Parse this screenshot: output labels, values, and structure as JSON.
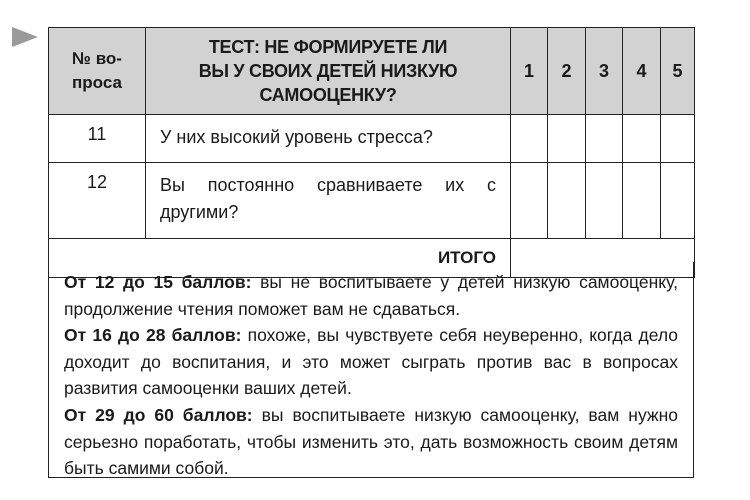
{
  "table": {
    "header": {
      "number_col": "№ во-\nпроса",
      "title": "ТЕСТ: НЕ ФОРМИРУЕТЕ ЛИ ВЫ У СВОИХ ДЕТЕЙ НИЗКУЮ САМООЦЕНКУ?",
      "scores": [
        "1",
        "2",
        "3",
        "4",
        "5"
      ]
    },
    "rows": [
      {
        "number": "11",
        "question": "У них высокий уровень стресса?"
      },
      {
        "number": "12",
        "question": "Вы постоянно сравниваете их с другими?"
      }
    ],
    "total_label": "ИТОГО"
  },
  "results": [
    {
      "range": "От 12 до 15 баллов:",
      "text": " вы не воспитываете у детей низкую самооценку, продолжение чтения поможет вам не сдаваться."
    },
    {
      "range": "От 16 до 28 баллов:",
      "text": " похоже, вы чувствуете себя неуверенно, когда дело доходит до воспитания, и это может сыграть против вас в вопросах развития самооценки ваших детей."
    },
    {
      "range": "От 29 до 60 баллов:",
      "text": " вы воспитываете низкую самооценку, вам нужно серьезно поработать, чтобы изменить это, дать возможность своим детям быть самими собой."
    }
  ],
  "colors": {
    "header_bg": "#d2d2d2",
    "marker": "#9a9a9a"
  },
  "icons": {
    "marker": "triangle-right-icon"
  }
}
